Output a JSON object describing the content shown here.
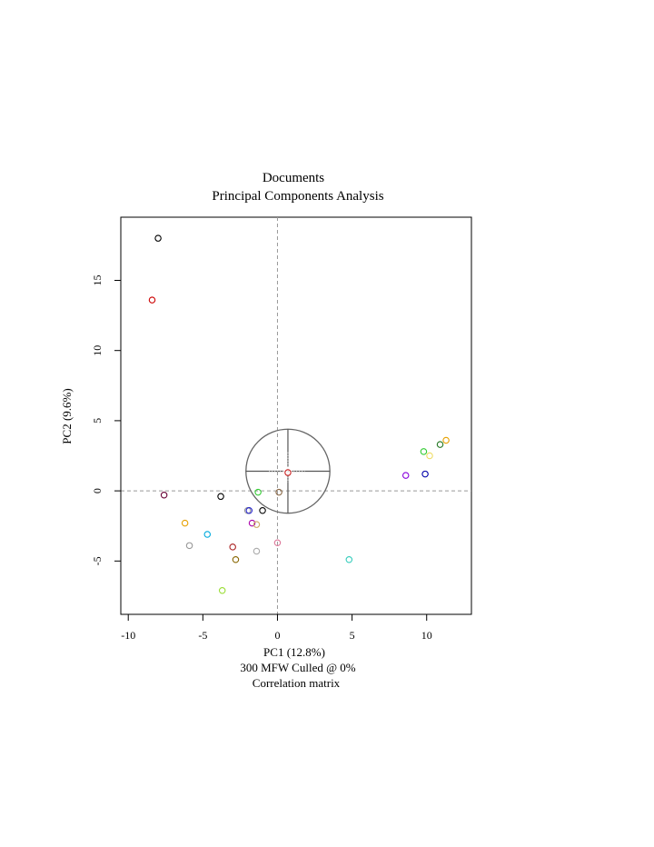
{
  "chart_data": {
    "type": "scatter",
    "title": "Documents",
    "subtitle": "Principal Components Analysis",
    "xlabel": "PC1 (12.8%)",
    "xlabel2": "300 MFW  Culled @ 0%",
    "xlabel3": "Correlation matrix",
    "ylabel": "PC2 (9.6%)",
    "xlim": [
      -10.5,
      13.0
    ],
    "ylim": [
      -8.8,
      19.5
    ],
    "x_ticks": [
      -10,
      -5,
      0,
      5,
      10
    ],
    "y_ticks": [
      -5,
      0,
      5,
      10,
      15
    ],
    "x_tick_labels": [
      "-10",
      "-5",
      "0",
      "5",
      "10"
    ],
    "y_tick_labels": [
      "-5",
      "0",
      "5",
      "10",
      "15"
    ],
    "reference_lines": {
      "x": 0,
      "y": 0,
      "style": "dashed"
    },
    "points": [
      {
        "x": -8.0,
        "y": 18.0,
        "color": "#000000"
      },
      {
        "x": -8.4,
        "y": 13.6,
        "color": "#cc0000"
      },
      {
        "x": -7.6,
        "y": -0.3,
        "color": "#660033"
      },
      {
        "x": -3.8,
        "y": -0.4,
        "color": "#000000"
      },
      {
        "x": -6.2,
        "y": -2.3,
        "color": "#e6a000"
      },
      {
        "x": -4.7,
        "y": -3.1,
        "color": "#00aadd"
      },
      {
        "x": -5.9,
        "y": -3.9,
        "color": "#999999"
      },
      {
        "x": -3.0,
        "y": -4.0,
        "color": "#aa2222"
      },
      {
        "x": -2.8,
        "y": -4.9,
        "color": "#886600"
      },
      {
        "x": -3.7,
        "y": -7.1,
        "color": "#99dd33"
      },
      {
        "x": -2.0,
        "y": -1.4,
        "color": "#999999"
      },
      {
        "x": -1.9,
        "y": -1.4,
        "color": "#2222cc"
      },
      {
        "x": -1.0,
        "y": -1.4,
        "color": "#000000"
      },
      {
        "x": -1.7,
        "y": -2.3,
        "color": "#aa00aa"
      },
      {
        "x": -1.4,
        "y": -2.4,
        "color": "#ccaa66"
      },
      {
        "x": -1.3,
        "y": -0.1,
        "color": "#33cc33"
      },
      {
        "x": -1.4,
        "y": -4.3,
        "color": "#aaaaaa"
      },
      {
        "x": 0.0,
        "y": -3.7,
        "color": "#dd7799"
      },
      {
        "x": 0.1,
        "y": -0.1,
        "color": "#886644"
      },
      {
        "x": 0.7,
        "y": 1.3,
        "color": "#cc2222"
      },
      {
        "x": 4.8,
        "y": -4.9,
        "color": "#33ccbb"
      },
      {
        "x": 8.6,
        "y": 1.1,
        "color": "#8800dd"
      },
      {
        "x": 9.9,
        "y": 1.2,
        "color": "#0000aa"
      },
      {
        "x": 9.8,
        "y": 2.8,
        "color": "#33cc33"
      },
      {
        "x": 10.2,
        "y": 2.5,
        "color": "#eedd66"
      },
      {
        "x": 10.9,
        "y": 3.3,
        "color": "#227722"
      },
      {
        "x": 11.3,
        "y": 3.6,
        "color": "#e6a000"
      }
    ],
    "loadings_circle": {
      "cx": 0.7,
      "cy": 1.4,
      "r": 2.9
    }
  }
}
